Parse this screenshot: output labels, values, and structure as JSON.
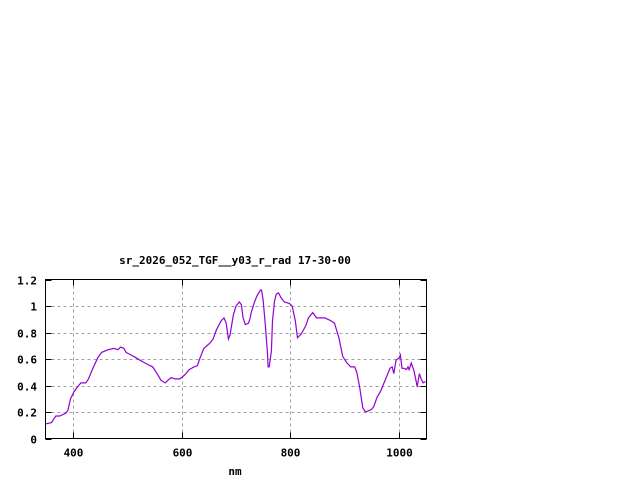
{
  "chart_data": {
    "type": "line",
    "title": "sr_2026_052_TGF__y03_r_rad 17-30-00",
    "xlabel": "nm",
    "ylabel": "",
    "xlim": [
      350,
      1050
    ],
    "ylim": [
      0,
      1.2
    ],
    "xticks": [
      400,
      600,
      800,
      1000
    ],
    "xtick_labels": [
      "400",
      "600",
      "800",
      "1000"
    ],
    "yticks": [
      0,
      0.2,
      0.4,
      0.6,
      0.8,
      1,
      1.2
    ],
    "ytick_labels": [
      "0",
      "0.2",
      "0.4",
      "0.6",
      "0.8",
      "1",
      "1.2"
    ],
    "grid": true,
    "legend": "none",
    "colors": {
      "series": "#9400d3",
      "grid": "#a0a0a0",
      "axis": "#000000"
    },
    "series": [
      {
        "x": [
          350,
          361,
          369,
          376,
          387,
          391,
          396,
          402,
          409,
          415,
          424,
          429,
          437,
          446,
          453,
          465,
          476,
          483,
          488,
          494,
          498,
          507,
          516,
          524,
          533,
          542,
          547,
          555,
          562,
          570,
          575,
          581,
          588,
          597,
          606,
          614,
          623,
          629,
          634,
          641,
          652,
          658,
          664,
          673,
          678,
          682,
          686,
          689,
          695,
          700,
          706,
          710,
          713,
          717,
          723,
          726,
          728,
          734,
          739,
          745,
          747,
          750,
          754,
          758,
          759,
          761,
          765,
          767,
          771,
          774,
          778,
          783,
          789,
          798,
          803,
          809,
          813,
          820,
          828,
          833,
          841,
          848,
          855,
          863,
          874,
          881,
          889,
          896,
          904,
          911,
          918,
          922,
          927,
          933,
          938,
          944,
          949,
          953,
          959,
          966,
          972,
          977,
          983,
          987,
          990,
          994,
          1000,
          1002,
          1005,
          1009,
          1013,
          1016,
          1018,
          1022,
          1027,
          1031,
          1033,
          1037,
          1040,
          1044,
          1048
        ],
        "y": [
          0.11,
          0.12,
          0.17,
          0.17,
          0.19,
          0.21,
          0.3,
          0.35,
          0.39,
          0.42,
          0.42,
          0.45,
          0.53,
          0.61,
          0.65,
          0.67,
          0.68,
          0.67,
          0.69,
          0.68,
          0.65,
          0.63,
          0.61,
          0.59,
          0.57,
          0.55,
          0.54,
          0.49,
          0.44,
          0.42,
          0.44,
          0.46,
          0.45,
          0.45,
          0.48,
          0.52,
          0.54,
          0.55,
          0.61,
          0.68,
          0.72,
          0.75,
          0.82,
          0.89,
          0.91,
          0.87,
          0.75,
          0.78,
          0.93,
          1.0,
          1.03,
          1.01,
          0.91,
          0.86,
          0.87,
          0.91,
          0.95,
          1.03,
          1.08,
          1.12,
          1.12,
          1.04,
          0.85,
          0.63,
          0.54,
          0.54,
          0.66,
          0.89,
          1.04,
          1.09,
          1.1,
          1.06,
          1.03,
          1.02,
          1.0,
          0.89,
          0.76,
          0.79,
          0.85,
          0.91,
          0.95,
          0.91,
          0.91,
          0.91,
          0.89,
          0.87,
          0.76,
          0.62,
          0.57,
          0.54,
          0.54,
          0.5,
          0.39,
          0.23,
          0.2,
          0.21,
          0.22,
          0.24,
          0.31,
          0.36,
          0.42,
          0.47,
          0.53,
          0.54,
          0.49,
          0.59,
          0.61,
          0.63,
          0.53,
          0.53,
          0.52,
          0.54,
          0.52,
          0.57,
          0.51,
          0.43,
          0.39,
          0.49,
          0.45,
          0.42,
          0.43
        ]
      }
    ]
  }
}
